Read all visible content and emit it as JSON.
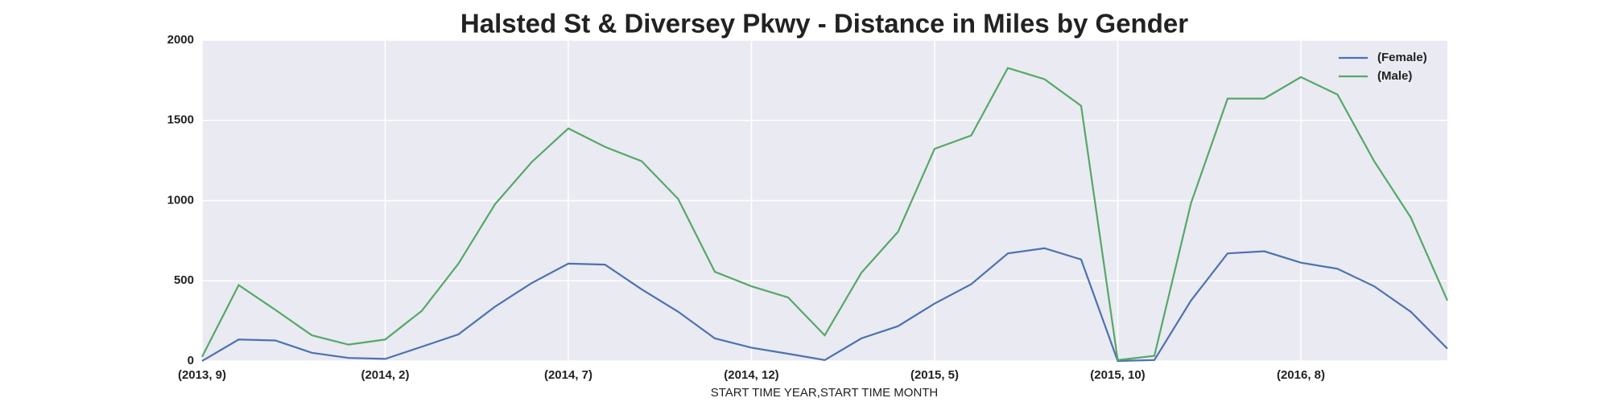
{
  "chart_data": {
    "type": "line",
    "title": "Halsted St & Diversey Pkwy - Distance in Miles by Gender",
    "x_label": "START TIME YEAR,START TIME MONTH",
    "categories": [
      "(2013, 9)",
      null,
      null,
      null,
      null,
      "(2014, 2)",
      null,
      null,
      null,
      null,
      "(2014, 7)",
      null,
      null,
      null,
      null,
      "(2014, 12)",
      null,
      null,
      null,
      null,
      "(2015, 5)",
      null,
      null,
      null,
      null,
      "(2015, 10)",
      null,
      null,
      null,
      null,
      "(2016, 8)",
      null,
      null,
      null,
      null
    ],
    "series": [
      {
        "name": "(Female)",
        "color": "#4c72b0",
        "values": [
          0,
          134,
          128,
          51,
          19,
          13,
          89,
          166,
          339,
          486,
          607,
          601,
          447,
          307,
          141,
          83,
          45,
          6,
          141,
          217,
          358,
          479,
          671,
          703,
          633,
          0,
          6,
          377,
          671,
          684,
          613,
          575,
          466,
          307,
          77
        ]
      },
      {
        "name": "(Male)",
        "color": "#55a868",
        "values": [
          26,
          473,
          319,
          160,
          102,
          134,
          313,
          607,
          978,
          1240,
          1450,
          1335,
          1246,
          1010,
          556,
          466,
          396,
          160,
          550,
          805,
          1323,
          1406,
          1827,
          1757,
          1591,
          6,
          32,
          984,
          1636,
          1636,
          1770,
          1661,
          1246,
          895,
          377
        ]
      }
    ],
    "ylim": [
      0,
      2000
    ],
    "yticks": [
      0,
      500,
      1000,
      1500,
      2000
    ],
    "grid": true,
    "legend": "upper right"
  }
}
